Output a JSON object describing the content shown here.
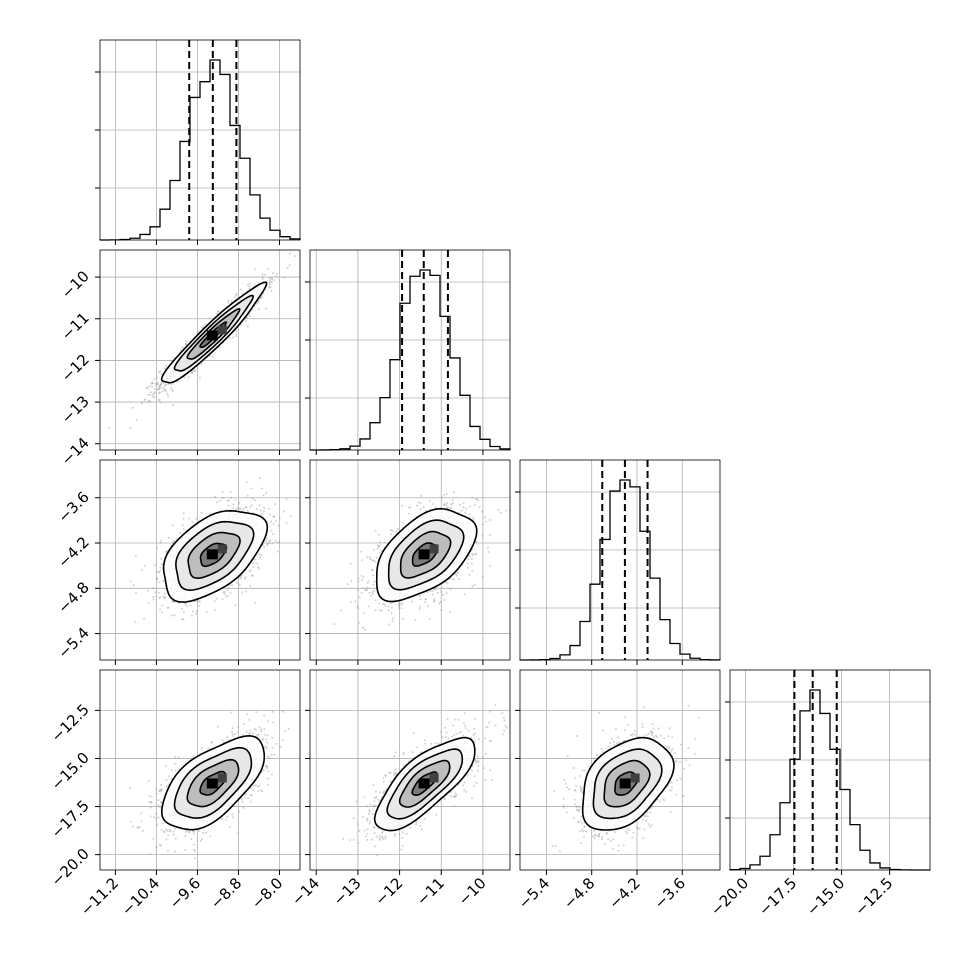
{
  "chart_data": {
    "type": "corner",
    "description_of_layout": "4x4 lower-triangular corner plot: histograms on diagonal, 2D density scatter/contours off-diagonal",
    "params": [
      {
        "range": [
          -11.5,
          -7.6
        ],
        "ticks": [
          -11.2,
          -10.4,
          -9.6,
          -8.8,
          -8.0
        ],
        "tick_labels": [
          "−11.2",
          "−10.4",
          "−9.6",
          "−8.8",
          "−8.0"
        ],
        "mean": -9.3,
        "sd": 0.5,
        "quantiles": [
          -9.76,
          -9.3,
          -8.84
        ]
      },
      {
        "range": [
          -14.15,
          -9.35
        ],
        "ticks": [
          -14,
          -13,
          -12,
          -11,
          -10
        ],
        "tick_labels": [
          "−14",
          "−13",
          "−12",
          "−11",
          "−10"
        ],
        "mean": -11.4,
        "sd": 0.6,
        "quantiles": [
          -11.94,
          -11.42,
          -10.84
        ]
      },
      {
        "range": [
          -5.75,
          -3.1
        ],
        "ticks": [
          -5.4,
          -4.8,
          -4.2,
          -3.6
        ],
        "tick_labels": [
          "−5.4",
          "−4.8",
          "−4.2",
          "−3.6"
        ],
        "mean": -4.35,
        "sd": 0.3,
        "quantiles": [
          -4.66,
          -4.36,
          -4.06
        ]
      },
      {
        "range": [
          -20.8,
          -10.4
        ],
        "ticks": [
          -20.0,
          -17.5,
          -15.0,
          -12.5
        ],
        "tick_labels": [
          "−20.0",
          "−17.5",
          "−15.0",
          "−12.5"
        ],
        "mean": -16.3,
        "sd": 1.2,
        "quantiles": [
          -17.45,
          -16.5,
          -15.25
        ]
      }
    ],
    "hist_bins": 20,
    "correlations": {
      "1_0": 0.95,
      "2_0": 0.5,
      "2_1": 0.5,
      "3_0": 0.6,
      "3_1": 0.75,
      "3_2": 0.4
    },
    "grid": true,
    "colors": {
      "line": "#000000",
      "grid": "#b0b0b0",
      "points": "#9a9a9a"
    }
  }
}
